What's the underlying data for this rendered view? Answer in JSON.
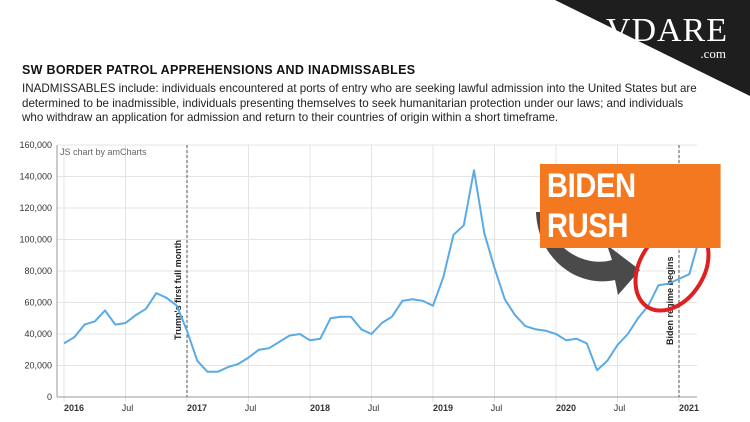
{
  "brand": {
    "logo_text": "VDARE",
    "logo_domain": ".com",
    "corner_color": "#1e1e1e"
  },
  "header": {
    "title": "SW BORDER PATROL APPREHENSIONS AND INADMISSABLES",
    "description": "INADMISSABLES include: individuals encountered at ports of entry who are seeking lawful admission into the United States but are determined to be inadmissible, individuals presenting themselves to seek humanitarian protection under our laws; and individuals who withdraw an application for admission and return to their countries of origin within a short timeframe."
  },
  "overlay": {
    "badge_text": "BIDEN RUSH",
    "badge_color": "#f4781f",
    "arrow_color": "#4a4a4a",
    "circle_color": "#e02020"
  },
  "chart_data": {
    "type": "line",
    "credit": "JS chart by amCharts",
    "line_color": "#5aaae6",
    "ylim": [
      0,
      160000
    ],
    "y_ticks": [
      "0",
      "20,000",
      "40,000",
      "60,000",
      "80,000",
      "100,000",
      "120,000",
      "140,000",
      "160,000"
    ],
    "y_tick_values": [
      0,
      20000,
      40000,
      60000,
      80000,
      100000,
      120000,
      140000,
      160000
    ],
    "x_ticks": [
      {
        "label": "2016",
        "month_index": 0
      },
      {
        "label": "Jul",
        "month_index": 6
      },
      {
        "label": "2017",
        "month_index": 12
      },
      {
        "label": "Jul",
        "month_index": 18
      },
      {
        "label": "2018",
        "month_index": 24
      },
      {
        "label": "Jul",
        "month_index": 30
      },
      {
        "label": "2019",
        "month_index": 36
      },
      {
        "label": "Jul",
        "month_index": 42
      },
      {
        "label": "2020",
        "month_index": 48
      },
      {
        "label": "Jul",
        "month_index": 54
      },
      {
        "label": "2021",
        "month_index": 60
      }
    ],
    "x_start": "2016-01",
    "grid": true,
    "annotations": [
      {
        "text": "Trump's first full month",
        "month_index": 12
      },
      {
        "text": "Biden regime begins",
        "month_index": 60
      }
    ],
    "series": [
      {
        "values": [
          34000,
          38000,
          46000,
          48000,
          55000,
          46000,
          47000,
          52000,
          56000,
          66000,
          63000,
          58000,
          42000,
          23000,
          16000,
          16000,
          19000,
          21000,
          25000,
          30000,
          31000,
          35000,
          39000,
          40000,
          36000,
          37000,
          50000,
          51000,
          51000,
          43000,
          40000,
          47000,
          51000,
          61000,
          62000,
          61000,
          58000,
          76000,
          103000,
          109000,
          144000,
          104000,
          82000,
          62000,
          52000,
          45000,
          43000,
          42000,
          40000,
          36000,
          37000,
          34000,
          17000,
          23000,
          33000,
          40000,
          50000,
          58000,
          71000,
          72000,
          75000,
          78000,
          101000
        ]
      }
    ]
  }
}
